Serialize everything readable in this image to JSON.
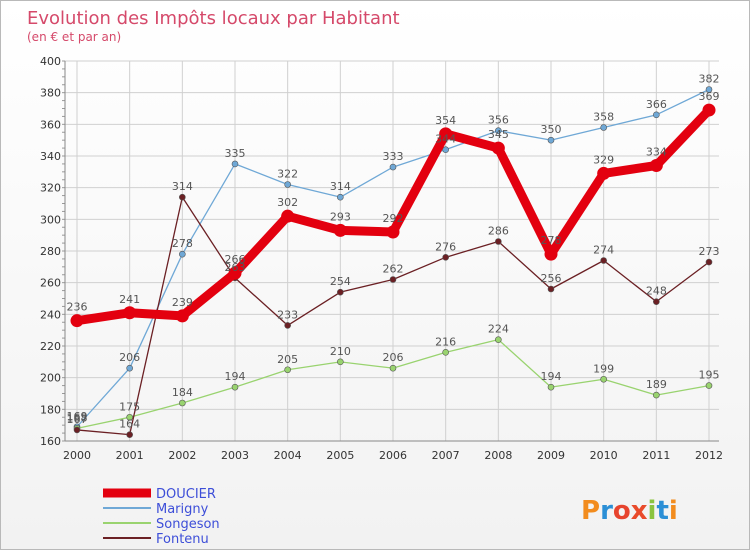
{
  "chart_data": {
    "type": "line",
    "title": "Evolution des Impôts locaux par Habitant",
    "subtitle": "(en € et par an)",
    "x": [
      "2000",
      "2001",
      "2002",
      "2003",
      "2004",
      "2005",
      "2006",
      "2007",
      "2008",
      "2009",
      "2010",
      "2011",
      "2012"
    ],
    "ylim": [
      160,
      400
    ],
    "yticks": [
      160,
      180,
      200,
      220,
      240,
      260,
      280,
      300,
      320,
      340,
      360,
      380,
      400
    ],
    "grid": true,
    "series": [
      {
        "name": "DOUCIER",
        "color": "#e3000f",
        "values": [
          236,
          241,
          239,
          266,
          302,
          293,
          292,
          354,
          345,
          278,
          329,
          334,
          369
        ]
      },
      {
        "name": "Marigny",
        "color": "#6fa8d6",
        "values": [
          169,
          206,
          278,
          335,
          322,
          314,
          333,
          344,
          356,
          350,
          358,
          366,
          382
        ]
      },
      {
        "name": "Songeson",
        "color": "#99d36f",
        "values": [
          168,
          175,
          184,
          194,
          205,
          210,
          206,
          216,
          224,
          194,
          199,
          189,
          195
        ]
      },
      {
        "name": "Fontenu",
        "color": "#6b2024",
        "values": [
          167,
          164,
          314,
          263,
          233,
          254,
          262,
          276,
          286,
          256,
          274,
          248,
          273
        ]
      }
    ]
  },
  "legend": {
    "items": [
      {
        "label": "DOUCIER",
        "color": "#e3000f",
        "text_color": "#3d4ed8"
      },
      {
        "label": "Marigny",
        "color": "#6fa8d6",
        "text_color": "#3d4ed8"
      },
      {
        "label": "Songeson",
        "color": "#99d36f",
        "text_color": "#3d4ed8"
      },
      {
        "label": "Fontenu",
        "color": "#6b2024",
        "text_color": "#3d4ed8"
      }
    ]
  },
  "logo": {
    "text": "Proxiti"
  }
}
